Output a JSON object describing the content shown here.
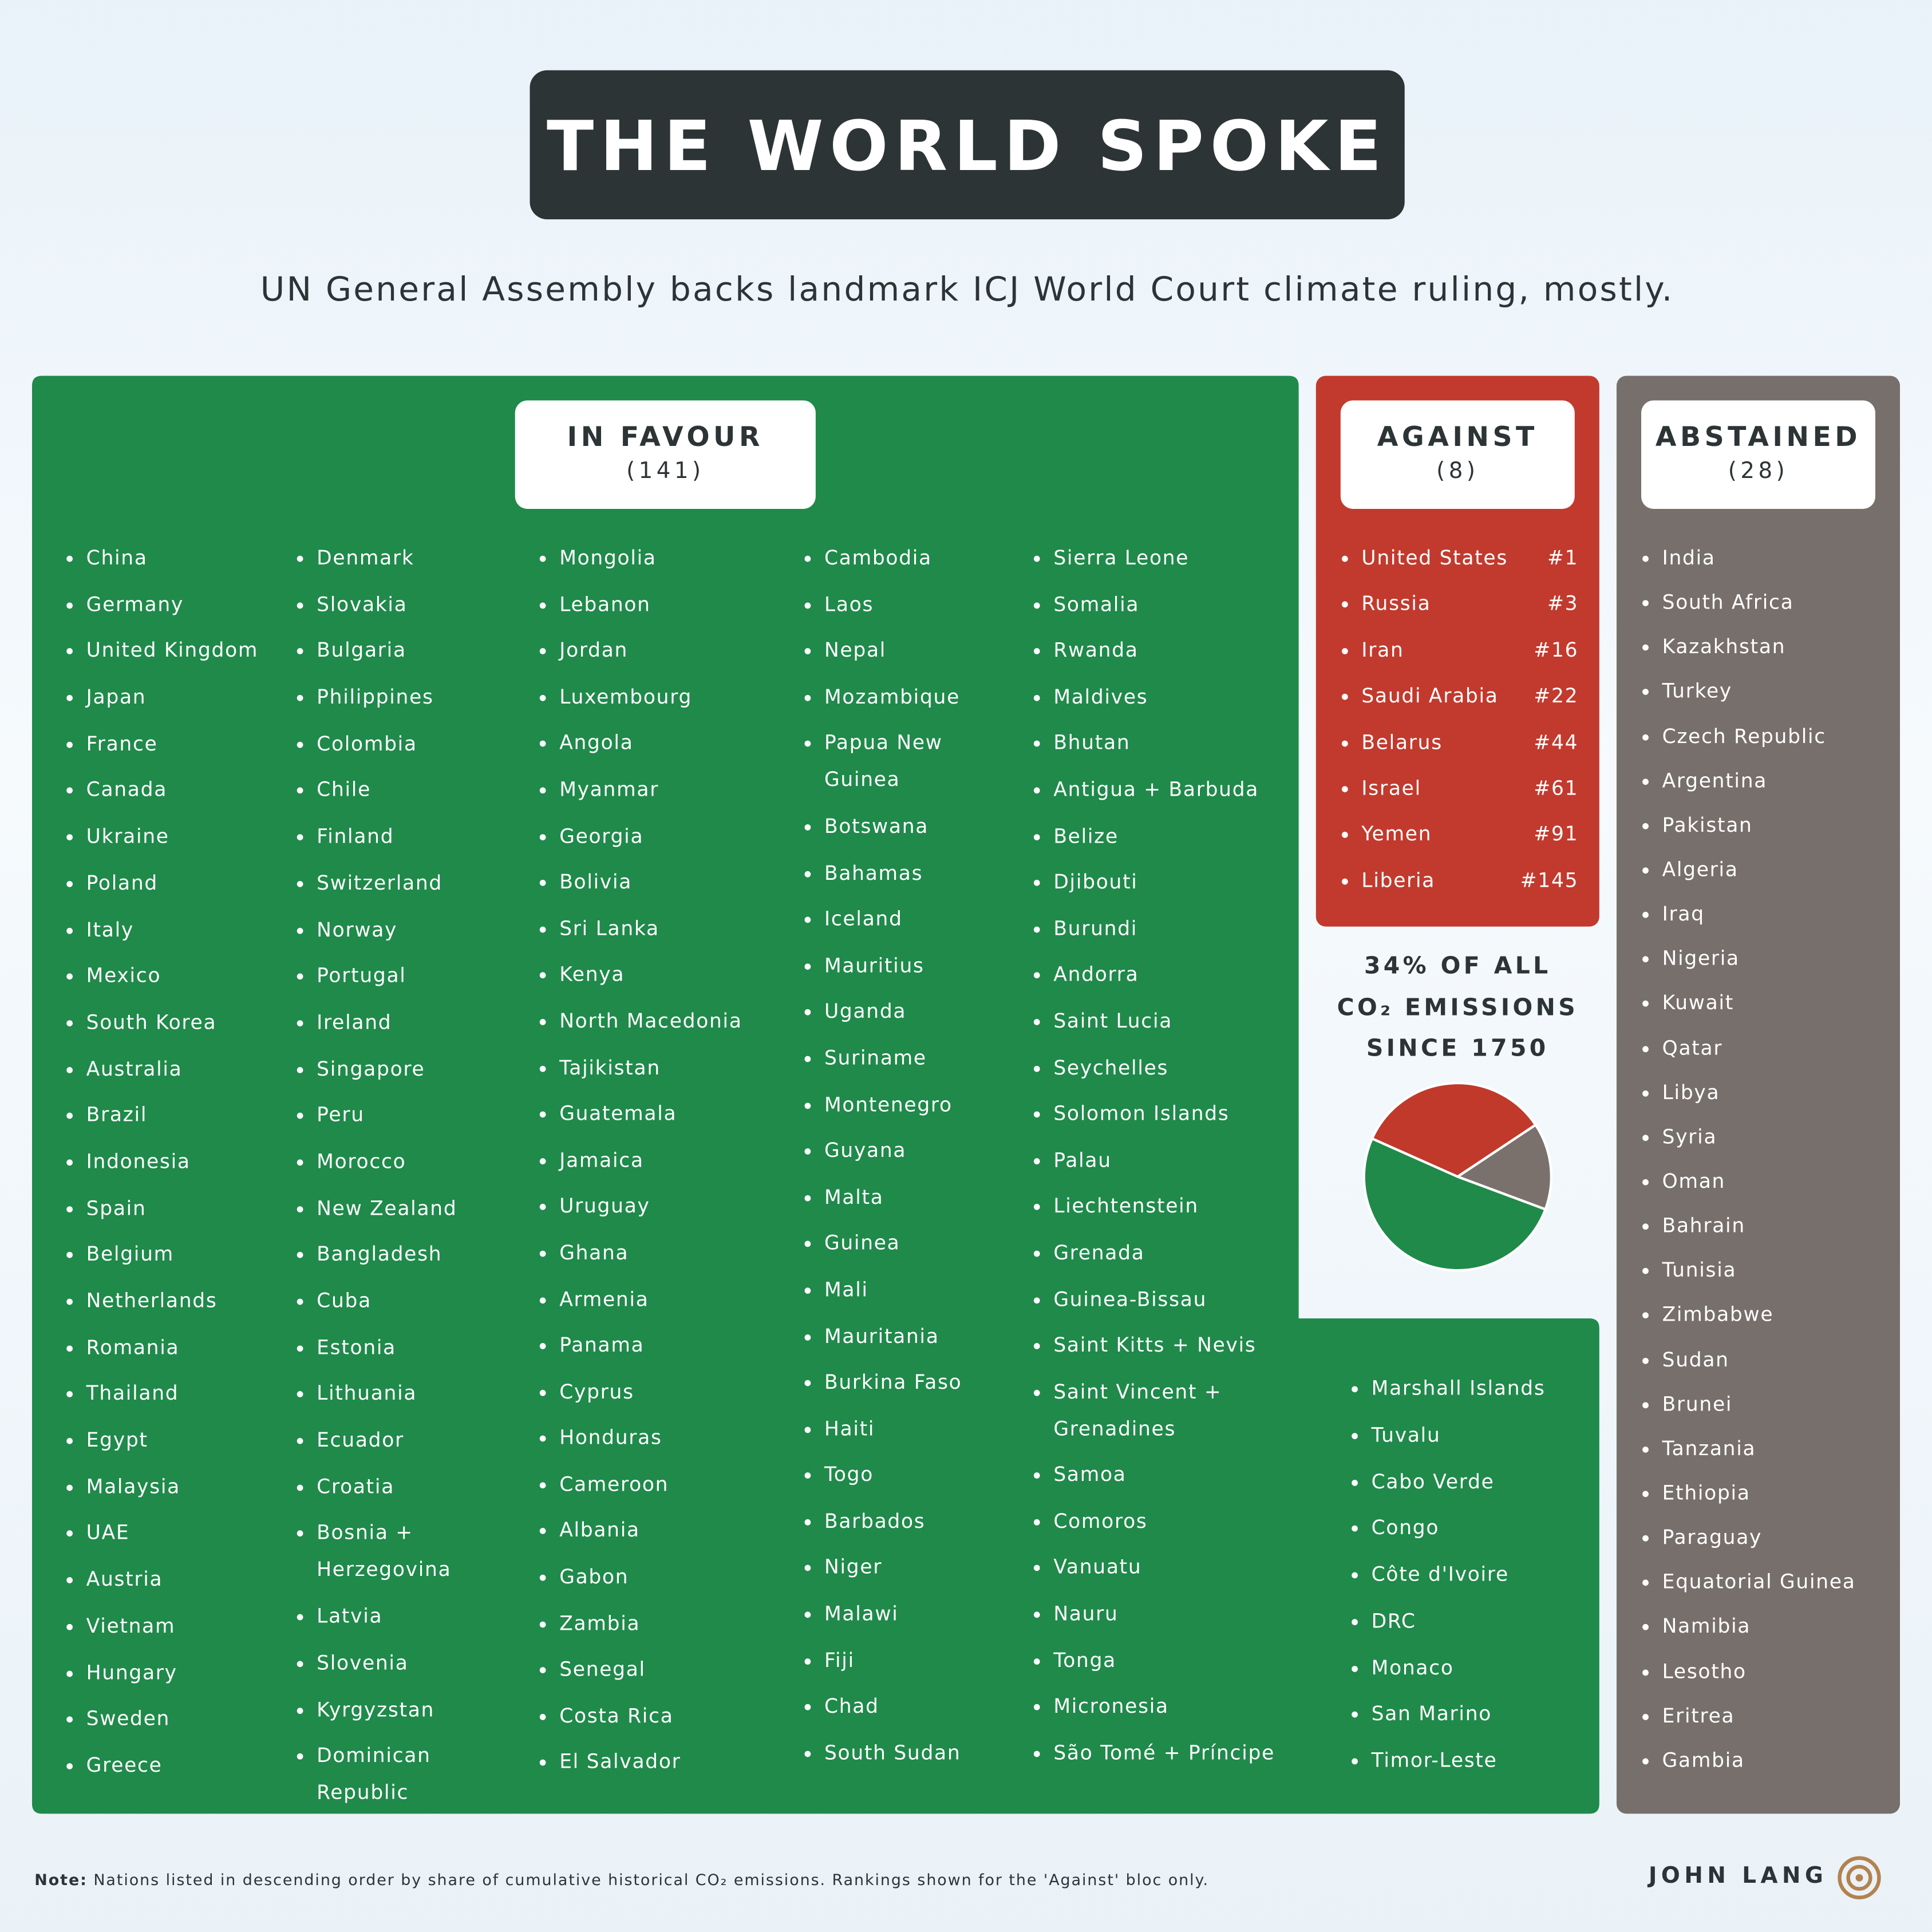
{
  "title": "THE WORLD SPOKE",
  "subtitle": "UN General Assembly backs landmark ICJ World Court climate ruling, mostly.",
  "in_favour": {
    "heading": "IN FAVOUR",
    "count": "(141)",
    "columns": [
      [
        "China",
        "Germany",
        "United Kingdom",
        "Japan",
        "France",
        "Canada",
        "Ukraine",
        "Poland",
        "Italy",
        "Mexico",
        "South Korea",
        "Australia",
        "Brazil",
        "Indonesia",
        "Spain",
        "Belgium",
        "Netherlands",
        "Romania",
        "Thailand",
        "Egypt",
        "Malaysia",
        "UAE",
        "Austria",
        "Vietnam",
        "Hungary",
        "Sweden",
        "Greece"
      ],
      [
        "Denmark",
        "Slovakia",
        "Bulgaria",
        "Philippines",
        "Colombia",
        "Chile",
        "Finland",
        "Switzerland",
        "Norway",
        "Portugal",
        "Ireland",
        "Singapore",
        "Peru",
        "Morocco",
        "New Zealand",
        "Bangladesh",
        "Cuba",
        "Estonia",
        "Lithuania",
        "Ecuador",
        "Croatia",
        "Bosnia + Herzegovina",
        "Latvia",
        "Slovenia",
        "Kyrgyzstan",
        "Dominican Republic"
      ],
      [
        "Mongolia",
        "Lebanon",
        "Jordan",
        "Luxembourg",
        "Angola",
        "Myanmar",
        "Georgia",
        "Bolivia",
        "Sri Lanka",
        "Kenya",
        "North Macedonia",
        "Tajikistan",
        "Guatemala",
        "Jamaica",
        "Uruguay",
        "Ghana",
        "Armenia",
        "Panama",
        "Cyprus",
        "Honduras",
        "Cameroon",
        "Albania",
        "Gabon",
        "Zambia",
        "Senegal",
        "Costa Rica",
        "El Salvador"
      ],
      [
        "Cambodia",
        "Laos",
        "Nepal",
        "Mozambique",
        "Papua New Guinea",
        "Botswana",
        "Bahamas",
        "Iceland",
        "Mauritius",
        "Uganda",
        "Suriname",
        "Montenegro",
        "Guyana",
        "Malta",
        "Guinea",
        "Mali",
        "Mauritania",
        "Burkina Faso",
        "Haiti",
        "Togo",
        "Barbados",
        "Niger",
        "Malawi",
        "Fiji",
        "Chad",
        "South Sudan"
      ],
      [
        "Sierra Leone",
        "Somalia",
        "Rwanda",
        "Maldives",
        "Bhutan",
        "Antigua + Barbuda",
        "Belize",
        "Djibouti",
        "Burundi",
        "Andorra",
        "Saint Lucia",
        "Seychelles",
        "Solomon Islands",
        "Palau",
        "Liechtenstein",
        "Grenada",
        "Guinea-Bissau",
        "Saint Kitts + Nevis",
        "Saint Vincent + Grenadines",
        "Samoa",
        "Comoros",
        "Vanuatu",
        "Nauru",
        "Tonga",
        "Micronesia",
        "São Tomé + Príncipe"
      ],
      [
        "Marshall Islands",
        "Tuvalu",
        "Cabo Verde",
        "Congo",
        "Côte d'Ivoire",
        "DRC",
        "Monaco",
        "San Marino",
        "Timor-Leste"
      ]
    ]
  },
  "against": {
    "heading": "AGAINST",
    "count": "(8)",
    "countries": [
      {
        "name": "United States",
        "rank": "#1"
      },
      {
        "name": "Russia",
        "rank": "#3"
      },
      {
        "name": "Iran",
        "rank": "#16"
      },
      {
        "name": "Saudi Arabia",
        "rank": "#22"
      },
      {
        "name": "Belarus",
        "rank": "#44"
      },
      {
        "name": "Israel",
        "rank": "#61"
      },
      {
        "name": "Yemen",
        "rank": "#91"
      },
      {
        "name": "Liberia",
        "rank": "#145"
      }
    ]
  },
  "abstained": {
    "heading": "ABSTAINED",
    "count": "(28)",
    "countries": [
      "India",
      "South Africa",
      "Kazakhstan",
      "Turkey",
      "Czech Republic",
      "Argentina",
      "Pakistan",
      "Algeria",
      "Iraq",
      "Nigeria",
      "Kuwait",
      "Qatar",
      "Libya",
      "Syria",
      "Oman",
      "Bahrain",
      "Tunisia",
      "Zimbabwe",
      "Sudan",
      "Brunei",
      "Tanzania",
      "Ethiopia",
      "Paraguay",
      "Equatorial Guinea",
      "Namibia",
      "Lesotho",
      "Eritrea",
      "Gambia"
    ]
  },
  "chart_data": {
    "type": "pie",
    "title_lines": [
      "34% OF ALL",
      "CO₂ EMISSIONS",
      "SINCE 1750"
    ],
    "values": [
      34,
      15,
      51
    ],
    "colors": [
      "#c0392b",
      "#7a716c",
      "#1f8a4a"
    ]
  },
  "note": {
    "label": "Note:",
    "text": "Nations listed in descending order by share of cumulative historical CO₂ emissions. Rankings shown for the 'Against' bloc only."
  },
  "author": "JOHN LANG"
}
